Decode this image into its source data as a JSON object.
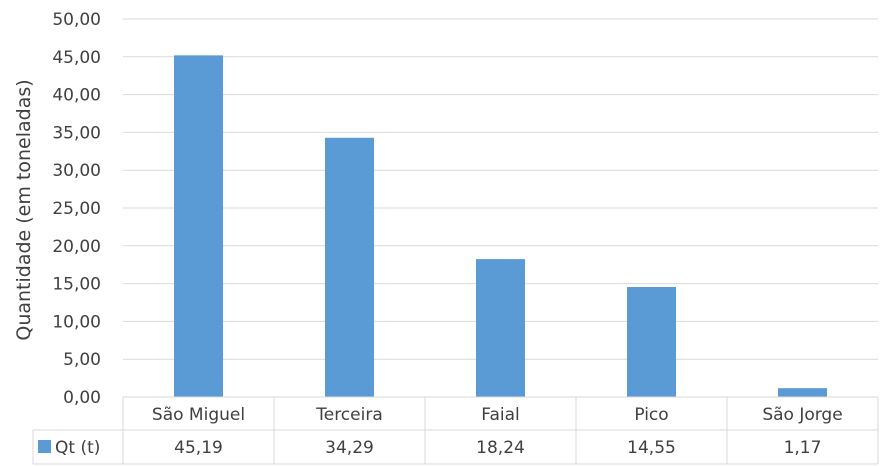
{
  "chart_data": {
    "type": "bar",
    "categories": [
      "São Miguel",
      "Terceira",
      "Faial",
      "Pico",
      "São Jorge"
    ],
    "series": [
      {
        "name": "Qt (t)",
        "values": [
          45.19,
          34.29,
          18.24,
          14.55,
          1.17
        ]
      }
    ],
    "value_labels": [
      "45,19",
      "34,29",
      "18,24",
      "14,55",
      "1,17"
    ],
    "ylabel": "Quantidade (em toneladas)",
    "xlabel": "",
    "ylim": [
      0,
      50
    ],
    "yticks": [
      0,
      5,
      10,
      15,
      20,
      25,
      30,
      35,
      40,
      45,
      50
    ],
    "ytick_labels": [
      "0,00",
      "5,00",
      "10,00",
      "15,00",
      "20,00",
      "25,00",
      "30,00",
      "35,00",
      "40,00",
      "45,00",
      "50,00"
    ],
    "grid": true,
    "legend": "data-table",
    "colors": {
      "bar": "#5B9BD5",
      "grid": "#D9D9D9",
      "text": "#404040"
    }
  }
}
